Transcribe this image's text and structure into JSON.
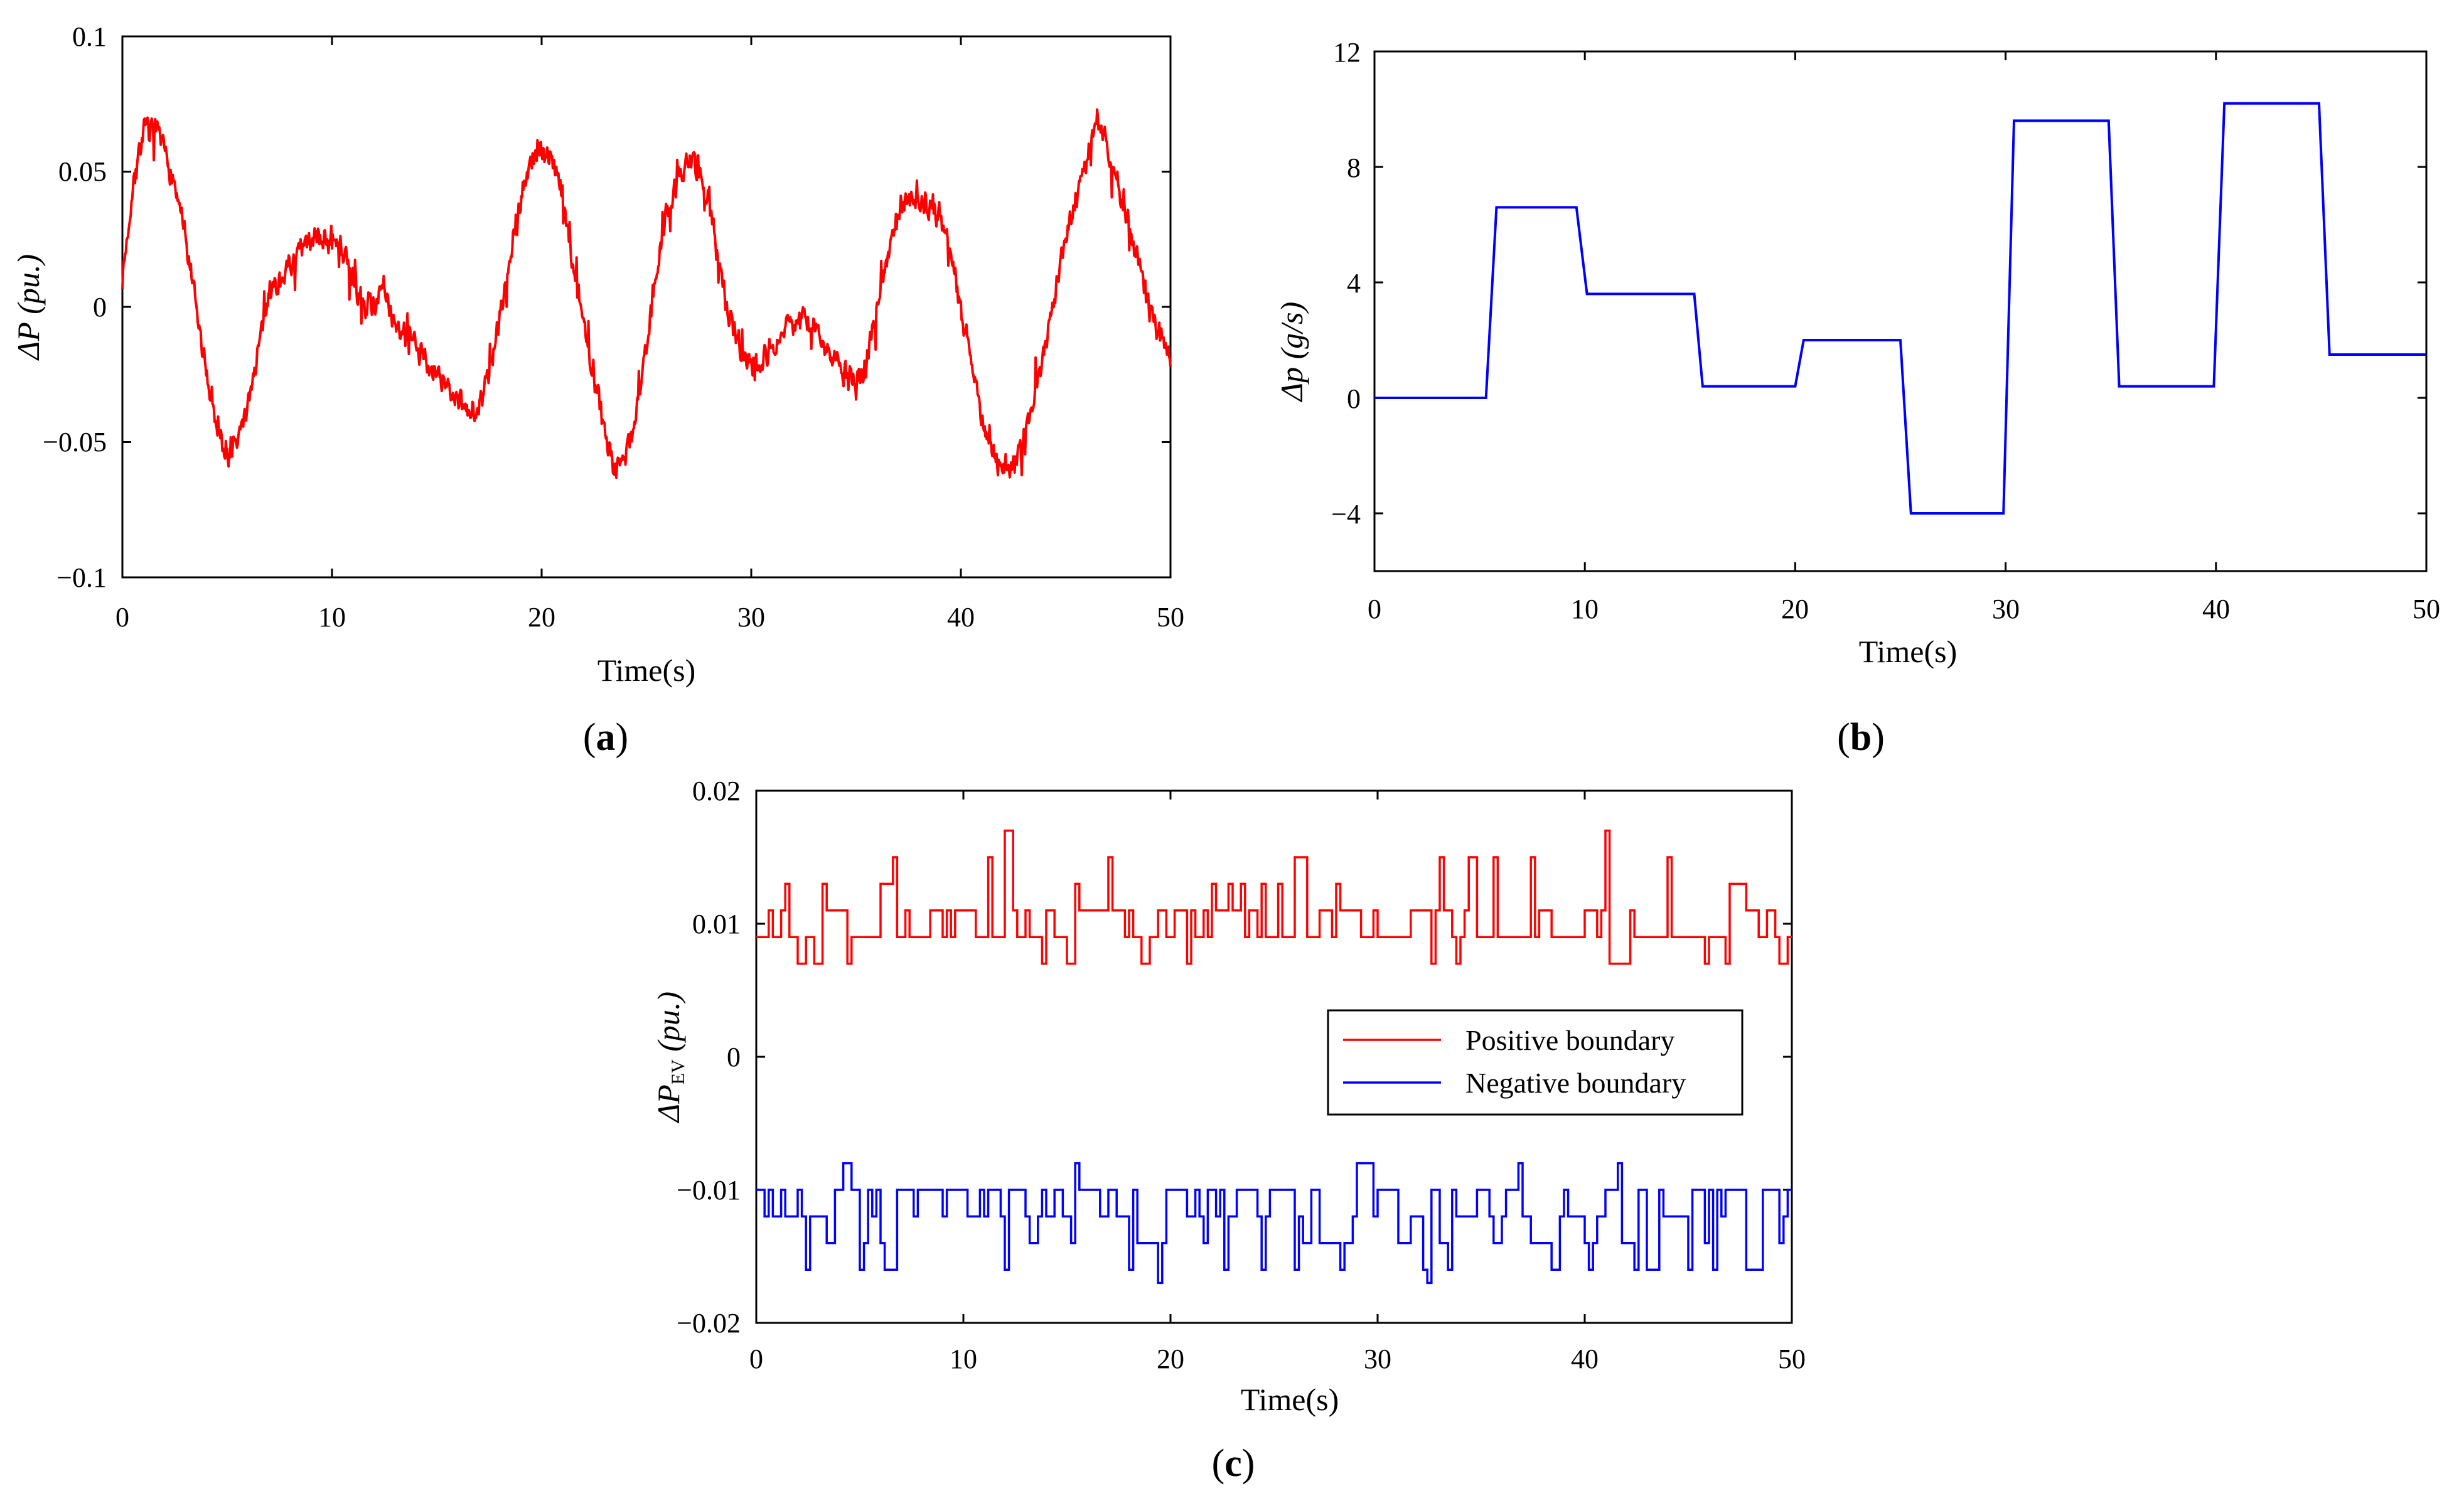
{
  "chart_data": [
    {
      "id": "a",
      "type": "line",
      "panel_label": "(a)",
      "panel_letter": "a",
      "xlabel": "Time(s)",
      "ylabel_prefix": "ΔP",
      "ylabel_unit": "(pu.)",
      "xlim": [
        0,
        50
      ],
      "ylim": [
        -0.1,
        0.1
      ],
      "xticks": [
        0,
        10,
        20,
        30,
        40,
        50
      ],
      "xtick_labels": [
        "0",
        "10",
        "20",
        "30",
        "40",
        "50"
      ],
      "yticks": [
        -0.1,
        -0.05,
        0,
        0.05,
        0.1
      ],
      "ytick_labels": [
        "−0.1",
        "−0.05",
        "0",
        "0.05",
        "0.1"
      ],
      "line_color": "#ff0000",
      "noise_amplitude": 0.006,
      "series": [
        {
          "name": "ΔP",
          "x": [
            0,
            0.5,
            1,
            1.5,
            2,
            2.5,
            3,
            3.5,
            4,
            4.5,
            5,
            5.5,
            6,
            6.5,
            7,
            7.5,
            8,
            8.5,
            9,
            9.5,
            10,
            10.5,
            11,
            11.5,
            12,
            12.5,
            13,
            13.5,
            14,
            14.5,
            15,
            15.5,
            16,
            16.5,
            17,
            17.5,
            18,
            18.5,
            19,
            19.5,
            20,
            20.5,
            21,
            21.5,
            22,
            22.5,
            23,
            23.5,
            24,
            24.5,
            25,
            25.5,
            26,
            26.5,
            27,
            27.5,
            28,
            28.5,
            29,
            29.5,
            30,
            30.5,
            31,
            31.5,
            32,
            32.5,
            33,
            33.5,
            34,
            34.5,
            35,
            35.5,
            36,
            36.5,
            37,
            37.5,
            38,
            38.5,
            39,
            39.5,
            40,
            40.5,
            41,
            41.5,
            42,
            42.5,
            43,
            43.5,
            44,
            44.5,
            45,
            45.5,
            46,
            46.5,
            47,
            47.5,
            48,
            48.5,
            49,
            49.5,
            50
          ],
          "y": [
            0.01,
            0.045,
            0.065,
            0.065,
            0.058,
            0.045,
            0.025,
            0.0,
            -0.025,
            -0.042,
            -0.055,
            -0.05,
            -0.035,
            -0.015,
            0.005,
            0.01,
            0.015,
            0.02,
            0.025,
            0.025,
            0.025,
            0.02,
            0.01,
            0.0,
            0.002,
            0.005,
            -0.005,
            -0.01,
            -0.015,
            -0.02,
            -0.025,
            -0.03,
            -0.035,
            -0.04,
            -0.035,
            -0.025,
            -0.005,
            0.02,
            0.04,
            0.055,
            0.058,
            0.055,
            0.04,
            0.015,
            -0.005,
            -0.025,
            -0.045,
            -0.06,
            -0.055,
            -0.04,
            -0.015,
            0.015,
            0.035,
            0.048,
            0.055,
            0.048,
            0.038,
            0.015,
            -0.005,
            -0.015,
            -0.02,
            -0.02,
            -0.015,
            -0.01,
            -0.005,
            -0.005,
            -0.008,
            -0.015,
            -0.02,
            -0.025,
            -0.03,
            -0.02,
            0.0,
            0.02,
            0.035,
            0.04,
            0.04,
            0.035,
            0.035,
            0.02,
            0.0,
            -0.02,
            -0.04,
            -0.055,
            -0.06,
            -0.058,
            -0.05,
            -0.035,
            -0.015,
            0.005,
            0.025,
            0.04,
            0.055,
            0.07,
            0.06,
            0.045,
            0.03,
            0.015,
            0.0,
            -0.01,
            -0.02
          ]
        }
      ]
    },
    {
      "id": "b",
      "type": "line",
      "panel_label": "(b)",
      "panel_letter": "b",
      "xlabel": "Time(s)",
      "ylabel_prefix": "Δp",
      "ylabel_unit": "(g/s)",
      "xlim": [
        0,
        50
      ],
      "ylim": [
        -6,
        12
      ],
      "xticks": [
        0,
        10,
        20,
        30,
        40,
        50
      ],
      "xtick_labels": [
        "0",
        "10",
        "20",
        "30",
        "40",
        "50"
      ],
      "yticks": [
        -4,
        0,
        4,
        8,
        12
      ],
      "ytick_labels": [
        "−4",
        "0",
        "4",
        "8",
        "12"
      ],
      "line_color": "#0000ff",
      "series": [
        {
          "name": "Δp",
          "x": [
            0,
            5.3,
            5.8,
            9.6,
            10.1,
            15.2,
            15.6,
            20.0,
            20.4,
            25.0,
            25.5,
            29.9,
            30.4,
            34.9,
            35.4,
            39.9,
            40.4,
            44.9,
            45.4,
            50
          ],
          "y": [
            0,
            0,
            6.6,
            6.6,
            3.6,
            3.6,
            0.4,
            0.4,
            2.0,
            2.0,
            -4.0,
            -4.0,
            9.6,
            9.6,
            0.4,
            0.4,
            10.2,
            10.2,
            1.5,
            1.5
          ]
        }
      ]
    },
    {
      "id": "c",
      "type": "line",
      "panel_label": "(c)",
      "panel_letter": "c",
      "xlabel": "Time(s)",
      "ylabel_prefix": "ΔP",
      "ylabel_sub": "EV",
      "ylabel_unit": "(pu.)",
      "xlim": [
        0,
        50
      ],
      "ylim": [
        -0.02,
        0.02
      ],
      "xticks": [
        0,
        10,
        20,
        30,
        40,
        50
      ],
      "xtick_labels": [
        "0",
        "10",
        "20",
        "30",
        "40",
        "50"
      ],
      "yticks": [
        -0.02,
        -0.01,
        0,
        0.01,
        0.02
      ],
      "ytick_labels": [
        "−0.02",
        "−0.01",
        "0",
        "0.01",
        "0.02"
      ],
      "legend": {
        "position": "center-right"
      },
      "series": [
        {
          "name": "Positive boundary",
          "color": "#ff0000",
          "step": 0.2,
          "levels": [
            0.007,
            0.009,
            0.011,
            0.013,
            0.015,
            0.017
          ],
          "level_weights": [
            1,
            5,
            3,
            1,
            0.4,
            0.2
          ]
        },
        {
          "name": "Negative boundary",
          "color": "#0000ff",
          "step": 0.2,
          "levels": [
            -0.008,
            -0.01,
            -0.012,
            -0.014,
            -0.016,
            -0.017
          ],
          "level_weights": [
            0.4,
            4,
            3,
            2,
            0.8,
            0.2
          ]
        }
      ]
    }
  ]
}
